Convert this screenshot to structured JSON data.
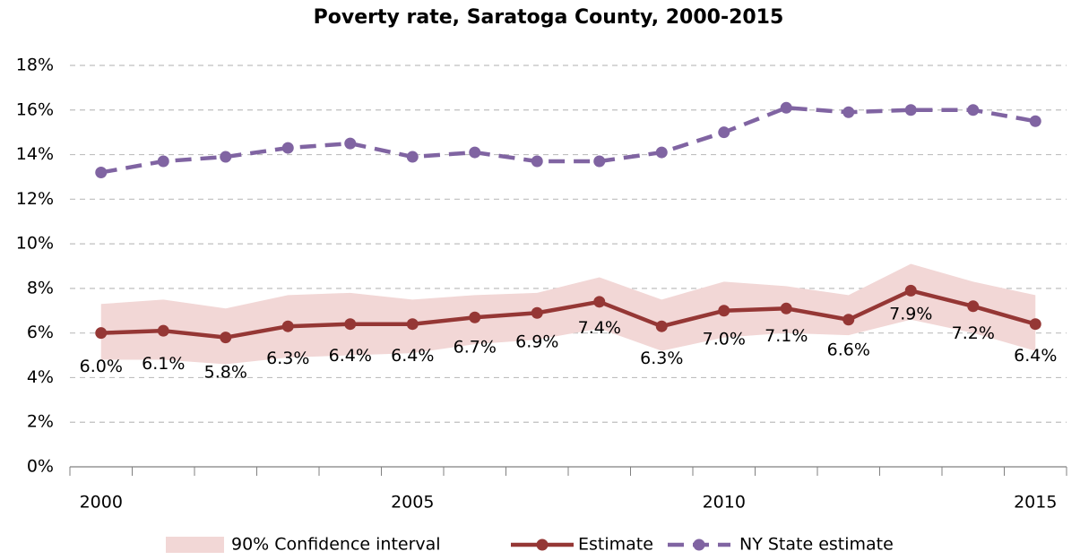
{
  "chart_data": {
    "type": "line",
    "title": "Poverty rate, Saratoga County, 2000-2015",
    "categories": [
      "2000",
      null,
      null,
      null,
      null,
      "2005",
      null,
      null,
      null,
      null,
      "2010",
      null,
      null,
      null,
      null,
      "2015"
    ],
    "confidence_interval": {
      "name": "90% Confidence interval",
      "color": "#f2d7d6",
      "upper": [
        7.3,
        7.5,
        7.1,
        7.7,
        7.8,
        7.5,
        7.7,
        7.8,
        8.5,
        7.5,
        8.3,
        8.1,
        7.7,
        9.1,
        8.3,
        7.7
      ],
      "lower": [
        4.8,
        4.8,
        4.6,
        4.9,
        5.0,
        5.1,
        5.5,
        5.7,
        6.2,
        5.2,
        5.8,
        6.0,
        5.9,
        6.6,
        6.0,
        5.2
      ]
    },
    "series": [
      {
        "name": "Estimate",
        "color": "#953735",
        "dashed": false,
        "values": [
          6.0,
          6.1,
          5.8,
          6.3,
          6.4,
          6.4,
          6.7,
          6.9,
          7.4,
          6.3,
          7.0,
          7.1,
          6.6,
          7.9,
          7.2,
          6.4
        ],
        "value_labels": [
          "6.0%",
          "6.1%",
          "5.8%",
          "6.3%",
          "6.4%",
          "6.4%",
          "6.7%",
          "6.9%",
          "7.4%",
          "6.3%",
          "7.0%",
          "7.1%",
          "6.6%",
          "7.9%",
          "7.2%",
          "6.4%"
        ]
      },
      {
        "name": "NY State estimate",
        "color": "#8064a2",
        "dashed": true,
        "values": [
          13.2,
          13.7,
          13.9,
          14.3,
          14.5,
          13.9,
          14.1,
          13.7,
          13.7,
          14.1,
          15.0,
          16.1,
          15.9,
          16.0,
          16.0,
          15.5
        ]
      }
    ],
    "ylim": [
      0,
      18
    ],
    "yticks": [
      {
        "value": 0,
        "label": "0%"
      },
      {
        "value": 2,
        "label": "2%"
      },
      {
        "value": 4,
        "label": "4%"
      },
      {
        "value": 6,
        "label": "6%"
      },
      {
        "value": 8,
        "label": "8%"
      },
      {
        "value": 10,
        "label": "10%"
      },
      {
        "value": 12,
        "label": "12%"
      },
      {
        "value": 14,
        "label": "14%"
      },
      {
        "value": 16,
        "label": "16%"
      },
      {
        "value": 18,
        "label": "18%"
      }
    ],
    "grid": true
  }
}
